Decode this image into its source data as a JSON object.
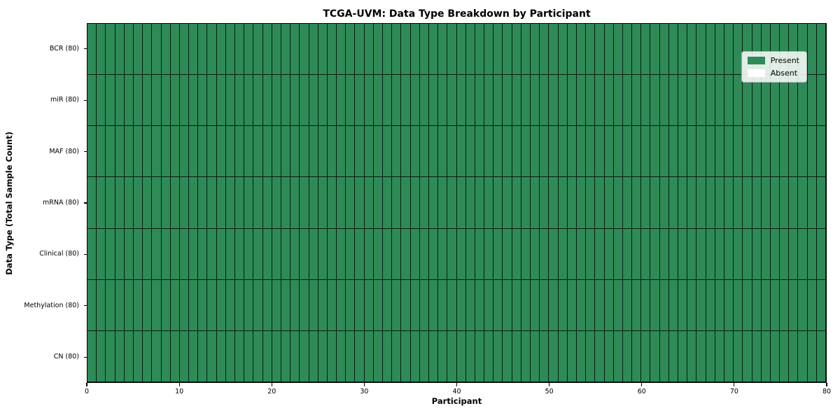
{
  "chart_data": {
    "type": "heatmap",
    "title": "TCGA-UVM: Data Type Breakdown by Participant",
    "xlabel": "Participant",
    "ylabel": "Data Type (Total Sample Count)",
    "x_range": [
      0,
      80
    ],
    "x_ticks": [
      0,
      10,
      20,
      30,
      40,
      50,
      60,
      70,
      80
    ],
    "n_participants": 80,
    "rows": [
      {
        "label": "BCR (80)",
        "data_type": "BCR",
        "total_samples": 80,
        "present_count": 80
      },
      {
        "label": "miR (80)",
        "data_type": "miR",
        "total_samples": 80,
        "present_count": 80
      },
      {
        "label": "MAF (80)",
        "data_type": "MAF",
        "total_samples": 80,
        "present_count": 80
      },
      {
        "label": "mRNA (80)",
        "data_type": "mRNA",
        "total_samples": 80,
        "present_count": 80
      },
      {
        "label": "Clinical (80)",
        "data_type": "Clinical",
        "total_samples": 80,
        "present_count": 80
      },
      {
        "label": "Methylation (80)",
        "data_type": "Methylation",
        "total_samples": 80,
        "present_count": 80
      },
      {
        "label": "CN (80)",
        "data_type": "CN",
        "total_samples": 80,
        "present_count": 80
      }
    ],
    "cell_colors": {
      "present": "#2E8B57",
      "absent": "#FFFFFF"
    },
    "cell_edge_color": "rgba(0,0,0,0.8)",
    "grid": false,
    "legend": {
      "position": "upper right",
      "items": [
        {
          "label": "Present",
          "color": "#2E8B57"
        },
        {
          "label": "Absent",
          "color": "#FFFFFF"
        }
      ]
    }
  }
}
